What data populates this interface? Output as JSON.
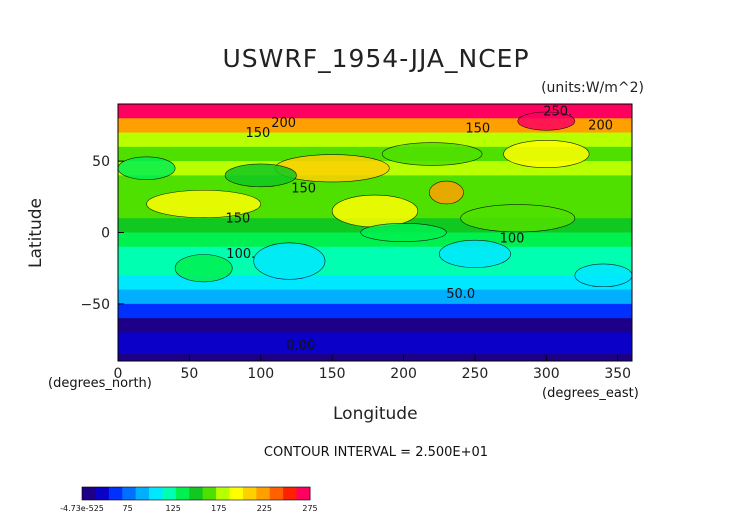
{
  "chart_data": {
    "type": "heatmap",
    "title": "USWRF_1954-JJA_NCEP",
    "units_label": "(units:W/m^2)",
    "xlabel": "Longitude",
    "ylabel": "Latitude",
    "x_unit_label": "(degrees_east)",
    "y_unit_label": "(degrees_north)",
    "xlim": [
      0,
      360
    ],
    "ylim": [
      -90,
      90
    ],
    "x_ticks": [
      0,
      50,
      100,
      150,
      200,
      250,
      300,
      350
    ],
    "y_ticks": [
      -50,
      0,
      50
    ],
    "x_tick_labels": [
      "0",
      "50",
      "100",
      "150",
      "200",
      "250",
      "300",
      "350"
    ],
    "y_tick_labels": [
      "−50",
      "0",
      "50"
    ],
    "contour_interval_text": "CONTOUR INTERVAL = 2.500E+01",
    "contour_labels": [
      {
        "text": "200",
        "lon": 116,
        "lat": 74
      },
      {
        "text": "150",
        "lon": 98,
        "lat": 67
      },
      {
        "text": "150",
        "lon": 130,
        "lat": 28
      },
      {
        "text": "150",
        "lon": 84,
        "lat": 7
      },
      {
        "text": "100.",
        "lon": 86,
        "lat": -18
      },
      {
        "text": "150",
        "lon": 252,
        "lat": 70
      },
      {
        "text": "250.",
        "lon": 308,
        "lat": 82
      },
      {
        "text": "200",
        "lon": 338,
        "lat": 72
      },
      {
        "text": "100",
        "lon": 276,
        "lat": -7
      },
      {
        "text": "50.0",
        "lon": 240,
        "lat": -46
      },
      {
        "text": "0.00",
        "lon": 128,
        "lat": -82
      }
    ],
    "zonal_profile": [
      {
        "lat": 90,
        "value": 280
      },
      {
        "lat": 80,
        "value": 240
      },
      {
        "lat": 70,
        "value": 185
      },
      {
        "lat": 60,
        "value": 140
      },
      {
        "lat": 50,
        "value": 165
      },
      {
        "lat": 40,
        "value": 150
      },
      {
        "lat": 30,
        "value": 145
      },
      {
        "lat": 20,
        "value": 160
      },
      {
        "lat": 10,
        "value": 140
      },
      {
        "lat": 0,
        "value": 125
      },
      {
        "lat": -10,
        "value": 105
      },
      {
        "lat": -20,
        "value": 95
      },
      {
        "lat": -30,
        "value": 90
      },
      {
        "lat": -40,
        "value": 75
      },
      {
        "lat": -50,
        "value": 40
      },
      {
        "lat": -60,
        "value": 15
      },
      {
        "lat": -70,
        "value": 0
      },
      {
        "lat": -80,
        "value": 0
      },
      {
        "lat": -90,
        "value": 0
      }
    ],
    "colorbar": {
      "labels": [
        "-4.73e-525",
        "75",
        "125",
        "175",
        "225",
        "275"
      ],
      "colors": [
        "#1d0087",
        "#0a00c8",
        "#0030ff",
        "#0070ff",
        "#00b0ff",
        "#00e8ff",
        "#00ffb0",
        "#00f050",
        "#10c820",
        "#50e000",
        "#b8ff00",
        "#ffff00",
        "#ffd000",
        "#ffa000",
        "#ff6000",
        "#ff2000",
        "#ff0060"
      ]
    }
  }
}
